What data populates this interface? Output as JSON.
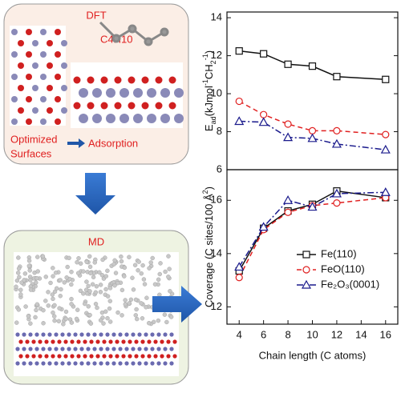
{
  "diagram": {
    "dft_title": "DFT",
    "molecule": "C4H10",
    "optimized": [
      "Optimized",
      "Surfaces"
    ],
    "adsorption": "Adsorption",
    "md_title": "MD"
  },
  "chart_data": [
    {
      "type": "line",
      "ylabel": [
        {
          "text": "E"
        },
        {
          "text": "ad",
          "sub": true
        },
        {
          "text": "(kJmol"
        },
        {
          "text": "-1",
          "sup": true
        },
        {
          "text": "CH"
        },
        {
          "text": "2",
          "sub": true
        },
        {
          "text": "-1",
          "sup": true
        },
        {
          "text": ")"
        }
      ],
      "x": [
        4,
        6,
        8,
        10,
        12,
        16
      ],
      "xlim": [
        3,
        17
      ],
      "ylim": [
        6,
        14.3
      ],
      "yticks": [
        6,
        8,
        10,
        12,
        14
      ],
      "series": [
        {
          "name": "Fe(110)",
          "color": "#111111",
          "marker": "square",
          "dash": "solid",
          "values": [
            12.25,
            12.1,
            11.55,
            11.45,
            10.9,
            10.75
          ]
        },
        {
          "name": "FeO(110)",
          "color": "#e02020",
          "marker": "circle",
          "dash": "dashed",
          "values": [
            9.6,
            8.9,
            8.4,
            8.05,
            8.05,
            7.85
          ]
        },
        {
          "name": "Fe₂O₃(0001)",
          "color": "#1a1a8c",
          "marker": "triangle",
          "dash": "dashdot",
          "values": [
            8.55,
            8.5,
            7.7,
            7.65,
            7.35,
            7.05
          ]
        }
      ]
    },
    {
      "type": "line",
      "ylabel": [
        {
          "text": "Coverage (C sites/100 Å"
        },
        {
          "text": "2",
          "sup": true
        },
        {
          "text": ")"
        }
      ],
      "xlabel": "Chain length (C atoms)",
      "x": [
        4,
        6,
        8,
        10,
        12,
        16
      ],
      "xlim": [
        3,
        17
      ],
      "xticks": [
        4,
        6,
        8,
        10,
        12,
        14,
        16
      ],
      "ylim": [
        11.35,
        17.15
      ],
      "yticks": [
        12,
        14,
        16
      ],
      "legend": "lower right",
      "series": [
        {
          "name": "Fe(110)",
          "color": "#111111",
          "marker": "square",
          "dash": "solid",
          "values": [
            13.35,
            14.95,
            15.6,
            15.85,
            16.35,
            16.1
          ]
        },
        {
          "name": "FeO(110)",
          "color": "#e02020",
          "marker": "circle",
          "dash": "dashed",
          "values": [
            13.1,
            14.9,
            15.55,
            15.8,
            15.9,
            16.1
          ]
        },
        {
          "name": "Fe₂O₃(0001)",
          "color": "#1a1a8c",
          "marker": "triangle",
          "dash": "dashdot",
          "values": [
            13.5,
            15.0,
            16.0,
            15.75,
            16.25,
            16.3
          ]
        }
      ]
    }
  ]
}
